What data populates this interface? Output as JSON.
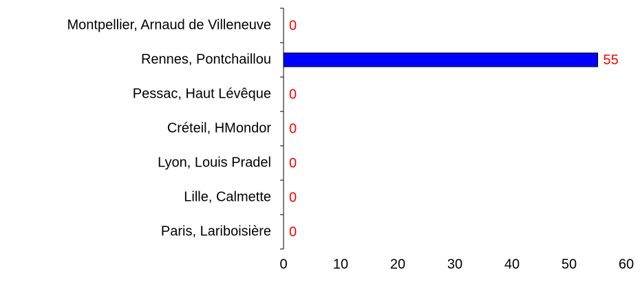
{
  "chart_data": {
    "type": "bar",
    "orientation": "horizontal",
    "categories": [
      "Montpellier, Arnaud de Villeneuve",
      "Rennes, Pontchaillou",
      "Pessac, Haut Lévêque",
      "Créteil, HMondor",
      "Lyon, Louis Pradel",
      "Lille, Calmette",
      "Paris, Lariboisière"
    ],
    "values": [
      0,
      55,
      0,
      0,
      0,
      0,
      0
    ],
    "color": "#0000ff",
    "value_label_color": "#ff0000",
    "xlim": [
      0,
      60
    ],
    "xticks": [
      0,
      10,
      20,
      30,
      40,
      50,
      60
    ],
    "grid": false
  }
}
